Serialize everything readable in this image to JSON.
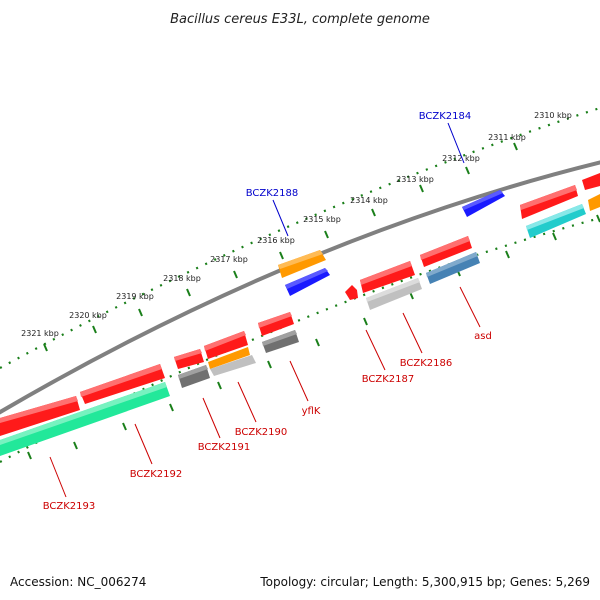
{
  "title": "Bacillus cereus E33L, complete genome",
  "footer": {
    "accession": "Accession: NC_006274",
    "topology": "Topology: circular; Length: 5,300,915 bp; Genes: 5,269"
  },
  "scale_labels": [
    "2310 kbp",
    "2311 kbp",
    "2312 kbp",
    "2313 kbp",
    "2314 kbp",
    "2315 kbp",
    "2316 kbp",
    "2317 kbp",
    "2318 kbp",
    "2319 kbp",
    "2320 kbp",
    "2321 kbp"
  ],
  "colors": {
    "backbone": "#808080",
    "tick": "#1a7f1a",
    "outer_label": "#0000cc",
    "inner_label": "#cc0000",
    "red": "#ff1a1a",
    "blue": "#1a1aff",
    "orange": "#ff9900",
    "cyan": "#22cccc",
    "seagreen": "#22e89a",
    "steelblue": "#4682b4",
    "dimgray": "#707070",
    "silver": "#c0c0c0"
  },
  "gene_labels": {
    "outer": [
      "BCZK2184",
      "BCZK2188"
    ],
    "inner": [
      "asd",
      "BCZK2186",
      "BCZK2187",
      "yflK",
      "BCZK2190",
      "BCZK2191",
      "BCZK2192",
      "BCZK2193"
    ]
  }
}
